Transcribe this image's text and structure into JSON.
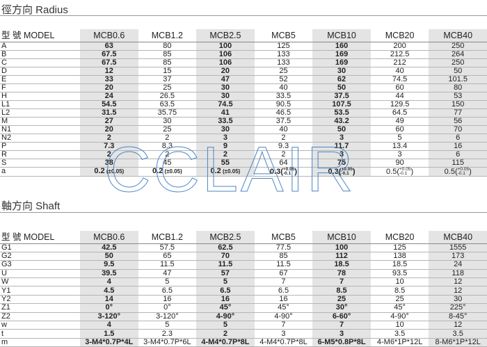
{
  "watermark": "CCLAIR",
  "radius": {
    "title": "徑方向  Radius",
    "model_label": "型  號 MODEL",
    "models": [
      "MCB0.6",
      "MCB1.2",
      "MCB2.5",
      "MCB5",
      "MCB10",
      "MCB20",
      "MCB40"
    ],
    "rows": [
      {
        "label": "A",
        "values": [
          "63",
          "80",
          "100",
          "125",
          "160",
          "200",
          "250"
        ]
      },
      {
        "label": "B",
        "values": [
          "67.5",
          "85",
          "106",
          "133",
          "169",
          "212.5",
          "264"
        ]
      },
      {
        "label": "C",
        "values": [
          "67.5",
          "85",
          "106",
          "133",
          "169",
          "212",
          "250"
        ]
      },
      {
        "label": "D",
        "values": [
          "12",
          "15",
          "20",
          "25",
          "30",
          "40",
          "50"
        ]
      },
      {
        "label": "E",
        "values": [
          "33",
          "37",
          "47",
          "52",
          "62",
          "74.5",
          "101.5"
        ]
      },
      {
        "label": "F",
        "values": [
          "20",
          "25",
          "30",
          "40",
          "50",
          "60",
          "80"
        ]
      },
      {
        "label": "H",
        "values": [
          "24",
          "26.5",
          "30",
          "33.5",
          "37.5",
          "44",
          "53"
        ]
      },
      {
        "label": "L1",
        "values": [
          "54.5",
          "63.5",
          "74.5",
          "90.5",
          "107.5",
          "129.5",
          "150"
        ]
      },
      {
        "label": "L2",
        "values": [
          "31.5",
          "35.75",
          "41",
          "46.5",
          "53.5",
          "64.5",
          "77"
        ]
      },
      {
        "label": "M",
        "values": [
          "27",
          "30",
          "33.5",
          "37.5",
          "43.2",
          "49",
          "56"
        ]
      },
      {
        "label": "N1",
        "values": [
          "20",
          "25",
          "30",
          "40",
          "50",
          "60",
          "70"
        ]
      },
      {
        "label": "N2",
        "values": [
          "2",
          "2",
          "3",
          "2",
          "3",
          "5",
          "6"
        ]
      },
      {
        "label": "P",
        "values": [
          "7.3",
          "8.3",
          "9",
          "9.3",
          "11.7",
          "13.4",
          "16"
        ]
      },
      {
        "label": "R",
        "values": [
          "2",
          "2",
          "2",
          "2",
          "3",
          "3",
          "6"
        ]
      },
      {
        "label": "S",
        "values": [
          "38",
          "45",
          "55",
          "64",
          "75",
          "90",
          "115"
        ]
      }
    ],
    "a_row": {
      "label": "a",
      "values": [
        {
          "v": "0.2",
          "tol": "(±0.05)"
        },
        {
          "v": "0.2",
          "tol": "(±0.05)"
        },
        {
          "v": "0.2",
          "tol": "(±0.05)"
        },
        {
          "v": "0.3",
          "tol_up": "+0.05",
          "tol_dn": "-0.1"
        },
        {
          "v": "0.3",
          "tol_up": "+0.05",
          "tol_dn": "-0.1"
        },
        {
          "v": "0.5",
          "tol_up": "+0.05",
          "tol_dn": "-0.1"
        },
        {
          "v": "0.5",
          "tol_up": "+0.05",
          "tol_dn": "-0.1"
        }
      ]
    }
  },
  "shaft": {
    "title": "軸方向  Shaft",
    "model_label": "型  號 MODEL",
    "models": [
      "MCB0.6",
      "MCB1.2",
      "MCB2.5",
      "MCB5",
      "MCB10",
      "MCB20",
      "MCB40"
    ],
    "rows": [
      {
        "label": "G1",
        "values": [
          "42.5",
          "57.5",
          "62.5",
          "77.5",
          "100",
          "125",
          "1555"
        ]
      },
      {
        "label": "G2",
        "values": [
          "50",
          "65",
          "70",
          "85",
          "112",
          "138",
          "173"
        ]
      },
      {
        "label": "G3",
        "values": [
          "9.5",
          "11.5",
          "11.5",
          "11.5",
          "18.5",
          "18.5",
          "24"
        ]
      },
      {
        "label": "U",
        "values": [
          "39.5",
          "47",
          "57",
          "67",
          "78",
          "93.5",
          "118"
        ]
      },
      {
        "label": "W",
        "values": [
          "4",
          "5",
          "5",
          "7",
          "7",
          "10",
          "12"
        ]
      },
      {
        "label": "Y1",
        "values": [
          "4.5",
          "6.5",
          "6.5",
          "6.5",
          "8.5",
          "8.5",
          "12"
        ]
      },
      {
        "label": "Y2",
        "values": [
          "14",
          "16",
          "16",
          "16",
          "25",
          "25",
          "30"
        ]
      },
      {
        "label": "Z1",
        "values": [
          "0°",
          "0°",
          "45°",
          "45°",
          "30°",
          "45°",
          "225°"
        ]
      },
      {
        "label": "Z2",
        "values": [
          "3-120°",
          "3-120°",
          "4-90°",
          "4-90°",
          "6-60°",
          "4-90°",
          "8-45°"
        ]
      },
      {
        "label": "w",
        "values": [
          "4",
          "5",
          "5",
          "7",
          "7",
          "10",
          "12"
        ]
      },
      {
        "label": "t",
        "values": [
          "1.5",
          "2.3",
          "2",
          "3",
          "3",
          "3.5",
          "3.5"
        ]
      },
      {
        "label": "m",
        "values": [
          "3-M4*0.7P*4L",
          "3-M4*0.7P*6L",
          "4-M4*0.7P*8L",
          "4-M4*0.7P*8L",
          "6-M5*0.8P*8L",
          "4-M6*1P*12L",
          "8-M6*1P*12L"
        ]
      }
    ]
  }
}
